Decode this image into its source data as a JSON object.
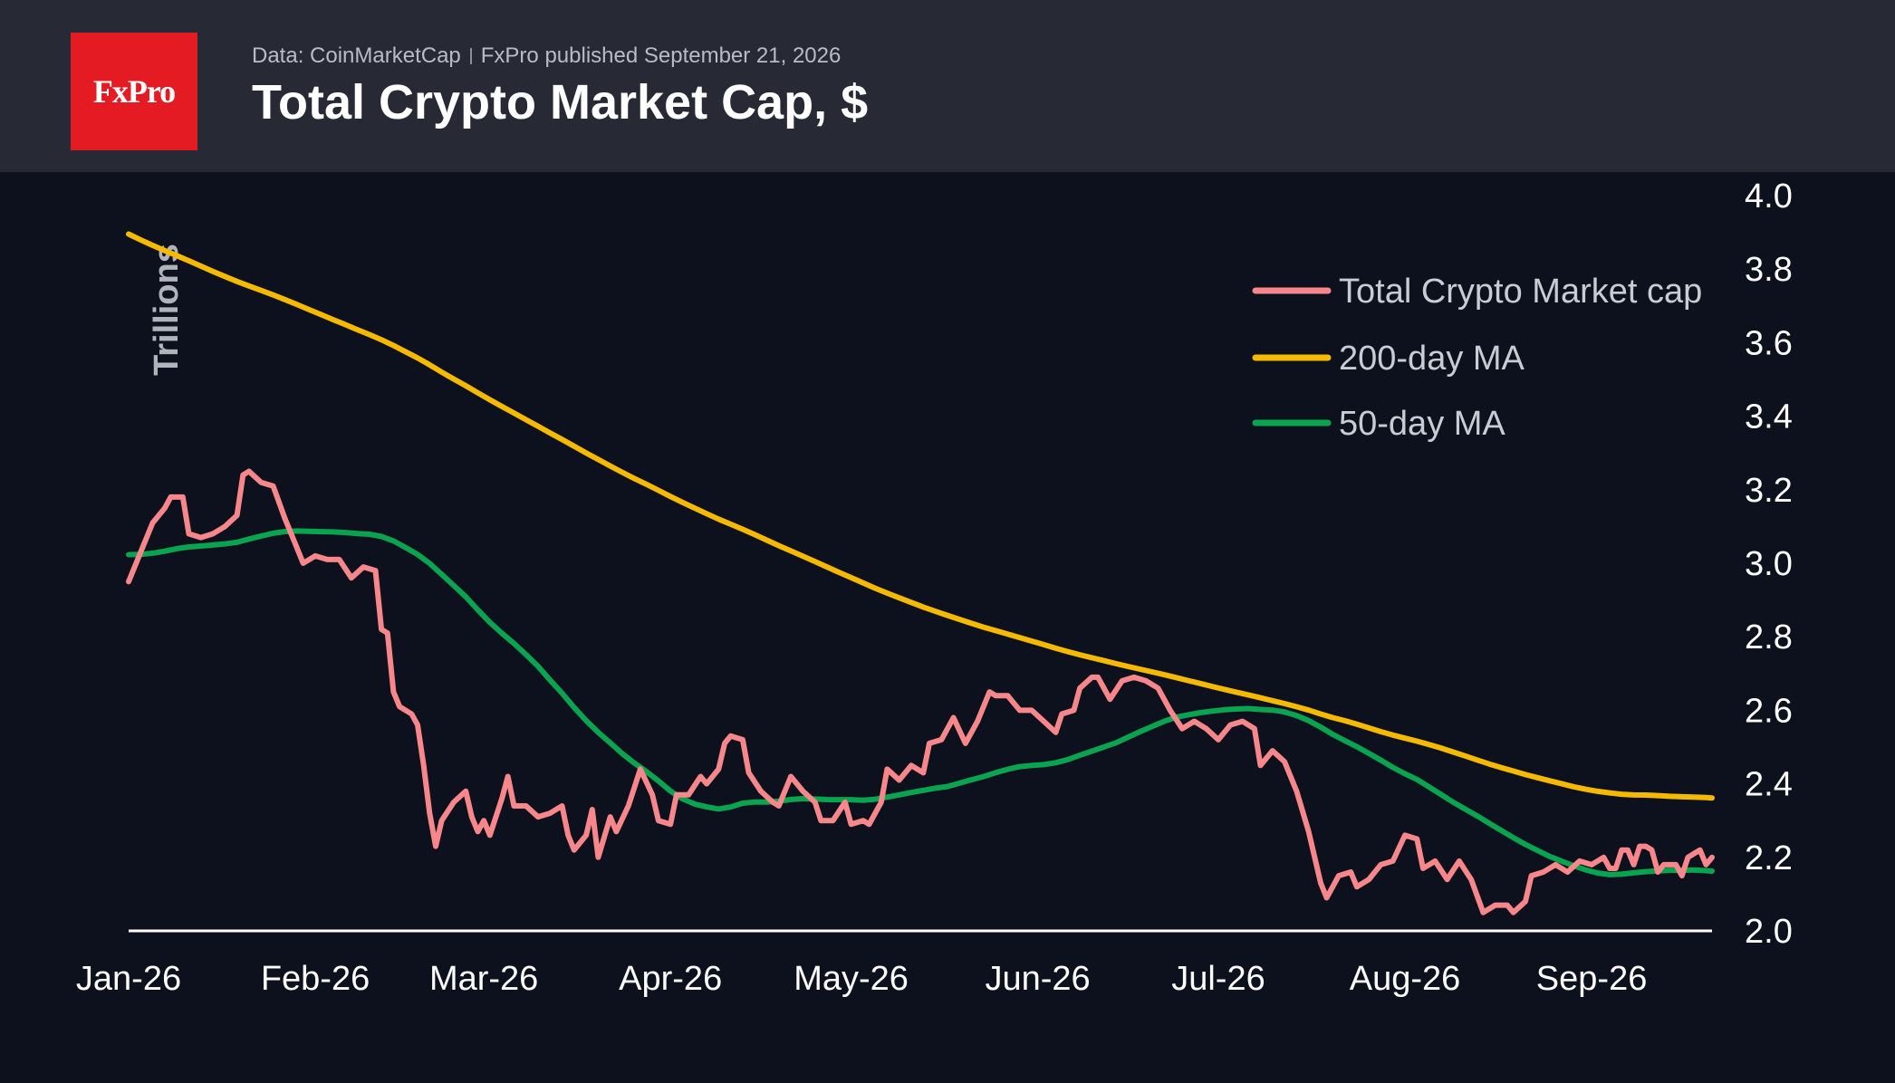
{
  "header": {
    "source": "Data: CoinMarketCap",
    "published": "FxPro published September 21, 2026",
    "title": "Total Crypto Market Cap, $",
    "logo_text": "FxPro",
    "logo_color": "#e51b23"
  },
  "chart_data": {
    "type": "line",
    "title": "Total Crypto Market Cap, $",
    "ylabel": "Trillions",
    "xlabel": "",
    "ylim": [
      2.0,
      4.0
    ],
    "y_ticks": [
      "2.0",
      "2.2",
      "2.4",
      "2.6",
      "2.8",
      "3.0",
      "3.2",
      "3.4",
      "3.6",
      "3.8",
      "4.0"
    ],
    "x_ticks": [
      "Jan-26",
      "Feb-26",
      "Mar-26",
      "Apr-26",
      "May-26",
      "Jun-26",
      "Jul-26",
      "Aug-26",
      "Sep-26"
    ],
    "x_start": "2026-01-01",
    "x_end": "2026-09-21",
    "legend_position": "top-right",
    "grid": false,
    "series": [
      {
        "name": "Total Crypto Market cap",
        "color": "#f7878a",
        "points": [
          [
            "2026-01-01",
            2.95
          ],
          [
            "2026-01-03",
            3.03
          ],
          [
            "2026-01-05",
            3.11
          ],
          [
            "2026-01-07",
            3.15
          ],
          [
            "2026-01-08",
            3.18
          ],
          [
            "2026-01-10",
            3.18
          ],
          [
            "2026-01-11",
            3.08
          ],
          [
            "2026-01-13",
            3.07
          ],
          [
            "2026-01-15",
            3.08
          ],
          [
            "2026-01-17",
            3.1
          ],
          [
            "2026-01-19",
            3.13
          ],
          [
            "2026-01-20",
            3.24
          ],
          [
            "2026-01-21",
            3.25
          ],
          [
            "2026-01-23",
            3.22
          ],
          [
            "2026-01-25",
            3.21
          ],
          [
            "2026-01-27",
            3.12
          ],
          [
            "2026-01-29",
            3.04
          ],
          [
            "2026-01-30",
            3.0
          ],
          [
            "2026-02-01",
            3.02
          ],
          [
            "2026-02-03",
            3.01
          ],
          [
            "2026-02-05",
            3.01
          ],
          [
            "2026-02-07",
            2.96
          ],
          [
            "2026-02-09",
            2.99
          ],
          [
            "2026-02-11",
            2.98
          ],
          [
            "2026-02-12",
            2.82
          ],
          [
            "2026-02-13",
            2.81
          ],
          [
            "2026-02-14",
            2.65
          ],
          [
            "2026-02-15",
            2.61
          ],
          [
            "2026-02-17",
            2.59
          ],
          [
            "2026-02-18",
            2.56
          ],
          [
            "2026-02-19",
            2.45
          ],
          [
            "2026-02-20",
            2.32
          ],
          [
            "2026-02-21",
            2.23
          ],
          [
            "2026-02-22",
            2.3
          ],
          [
            "2026-02-24",
            2.35
          ],
          [
            "2026-02-26",
            2.38
          ],
          [
            "2026-02-27",
            2.31
          ],
          [
            "2026-02-28",
            2.27
          ],
          [
            "2026-03-01",
            2.3
          ],
          [
            "2026-03-02",
            2.26
          ],
          [
            "2026-03-04",
            2.36
          ],
          [
            "2026-03-05",
            2.42
          ],
          [
            "2026-03-06",
            2.34
          ],
          [
            "2026-03-08",
            2.34
          ],
          [
            "2026-03-10",
            2.31
          ],
          [
            "2026-03-12",
            2.32
          ],
          [
            "2026-03-14",
            2.34
          ],
          [
            "2026-03-15",
            2.26
          ],
          [
            "2026-03-16",
            2.22
          ],
          [
            "2026-03-18",
            2.26
          ],
          [
            "2026-03-19",
            2.33
          ],
          [
            "2026-03-20",
            2.2
          ],
          [
            "2026-03-22",
            2.31
          ],
          [
            "2026-03-23",
            2.27
          ],
          [
            "2026-03-25",
            2.34
          ],
          [
            "2026-03-27",
            2.44
          ],
          [
            "2026-03-29",
            2.37
          ],
          [
            "2026-03-30",
            2.3
          ],
          [
            "2026-04-01",
            2.29
          ],
          [
            "2026-04-02",
            2.37
          ],
          [
            "2026-04-04",
            2.37
          ],
          [
            "2026-04-06",
            2.42
          ],
          [
            "2026-04-07",
            2.4
          ],
          [
            "2026-04-09",
            2.44
          ],
          [
            "2026-04-10",
            2.51
          ],
          [
            "2026-04-11",
            2.53
          ],
          [
            "2026-04-13",
            2.52
          ],
          [
            "2026-04-14",
            2.43
          ],
          [
            "2026-04-16",
            2.38
          ],
          [
            "2026-04-18",
            2.35
          ],
          [
            "2026-04-19",
            2.34
          ],
          [
            "2026-04-21",
            2.42
          ],
          [
            "2026-04-23",
            2.38
          ],
          [
            "2026-04-25",
            2.35
          ],
          [
            "2026-04-26",
            2.3
          ],
          [
            "2026-04-28",
            2.3
          ],
          [
            "2026-04-30",
            2.35
          ],
          [
            "2026-05-01",
            2.29
          ],
          [
            "2026-05-03",
            2.3
          ],
          [
            "2026-05-04",
            2.29
          ],
          [
            "2026-05-06",
            2.35
          ],
          [
            "2026-05-07",
            2.44
          ],
          [
            "2026-05-09",
            2.41
          ],
          [
            "2026-05-11",
            2.45
          ],
          [
            "2026-05-13",
            2.43
          ],
          [
            "2026-05-14",
            2.51
          ],
          [
            "2026-05-16",
            2.52
          ],
          [
            "2026-05-18",
            2.58
          ],
          [
            "2026-05-20",
            2.51
          ],
          [
            "2026-05-22",
            2.57
          ],
          [
            "2026-05-24",
            2.65
          ],
          [
            "2026-05-25",
            2.64
          ],
          [
            "2026-05-27",
            2.64
          ],
          [
            "2026-05-29",
            2.6
          ],
          [
            "2026-05-31",
            2.6
          ],
          [
            "2026-06-02",
            2.57
          ],
          [
            "2026-06-04",
            2.54
          ],
          [
            "2026-06-05",
            2.59
          ],
          [
            "2026-06-07",
            2.6
          ],
          [
            "2026-06-08",
            2.66
          ],
          [
            "2026-06-10",
            2.69
          ],
          [
            "2026-06-11",
            2.69
          ],
          [
            "2026-06-13",
            2.63
          ],
          [
            "2026-06-15",
            2.68
          ],
          [
            "2026-06-17",
            2.69
          ],
          [
            "2026-06-19",
            2.68
          ],
          [
            "2026-06-21",
            2.66
          ],
          [
            "2026-06-23",
            2.6
          ],
          [
            "2026-06-25",
            2.55
          ],
          [
            "2026-06-27",
            2.57
          ],
          [
            "2026-06-29",
            2.55
          ],
          [
            "2026-07-01",
            2.52
          ],
          [
            "2026-07-03",
            2.56
          ],
          [
            "2026-07-05",
            2.57
          ],
          [
            "2026-07-07",
            2.55
          ],
          [
            "2026-07-08",
            2.45
          ],
          [
            "2026-07-10",
            2.49
          ],
          [
            "2026-07-12",
            2.46
          ],
          [
            "2026-07-14",
            2.38
          ],
          [
            "2026-07-16",
            2.27
          ],
          [
            "2026-07-18",
            2.13
          ],
          [
            "2026-07-19",
            2.09
          ],
          [
            "2026-07-21",
            2.15
          ],
          [
            "2026-07-23",
            2.16
          ],
          [
            "2026-07-24",
            2.12
          ],
          [
            "2026-07-26",
            2.14
          ],
          [
            "2026-07-28",
            2.18
          ],
          [
            "2026-07-30",
            2.19
          ],
          [
            "2026-08-01",
            2.26
          ],
          [
            "2026-08-03",
            2.25
          ],
          [
            "2026-08-04",
            2.17
          ],
          [
            "2026-08-06",
            2.19
          ],
          [
            "2026-08-08",
            2.14
          ],
          [
            "2026-08-10",
            2.19
          ],
          [
            "2026-08-12",
            2.14
          ],
          [
            "2026-08-14",
            2.05
          ],
          [
            "2026-08-16",
            2.07
          ],
          [
            "2026-08-18",
            2.07
          ],
          [
            "2026-08-19",
            2.05
          ],
          [
            "2026-08-21",
            2.08
          ],
          [
            "2026-08-22",
            2.15
          ],
          [
            "2026-08-24",
            2.16
          ],
          [
            "2026-08-26",
            2.18
          ],
          [
            "2026-08-28",
            2.16
          ],
          [
            "2026-08-30",
            2.19
          ],
          [
            "2026-09-01",
            2.18
          ],
          [
            "2026-09-03",
            2.2
          ],
          [
            "2026-09-04",
            2.17
          ],
          [
            "2026-09-05",
            2.17
          ],
          [
            "2026-09-06",
            2.22
          ],
          [
            "2026-09-07",
            2.22
          ],
          [
            "2026-09-08",
            2.18
          ],
          [
            "2026-09-09",
            2.23
          ],
          [
            "2026-09-10",
            2.23
          ],
          [
            "2026-09-11",
            2.22
          ],
          [
            "2026-09-12",
            2.16
          ],
          [
            "2026-09-13",
            2.18
          ],
          [
            "2026-09-14",
            2.18
          ],
          [
            "2026-09-15",
            2.18
          ],
          [
            "2026-09-16",
            2.15
          ],
          [
            "2026-09-17",
            2.2
          ],
          [
            "2026-09-18",
            2.21
          ],
          [
            "2026-09-19",
            2.22
          ],
          [
            "2026-09-20",
            2.18
          ],
          [
            "2026-09-21",
            2.2
          ]
        ]
      },
      {
        "name": "200-day MA",
        "color": "#f5b900",
        "points": []
      },
      {
        "name": "50-day MA",
        "color": "#0aa34f",
        "points": []
      }
    ]
  }
}
